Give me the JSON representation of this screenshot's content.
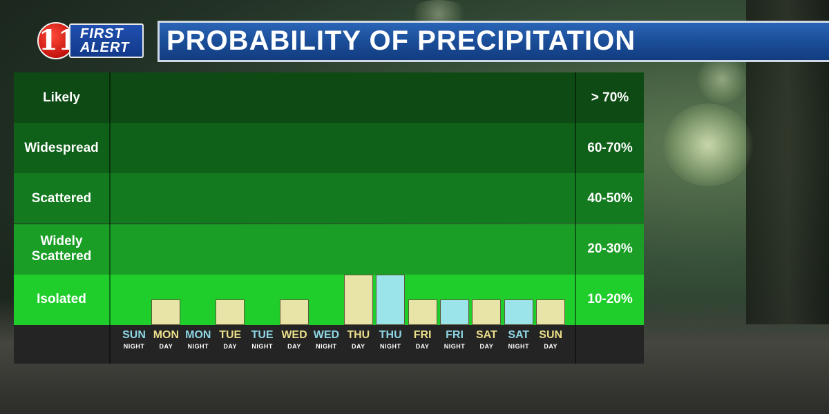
{
  "brand": {
    "logo_number": "11",
    "logo_line1": "FIRST",
    "logo_line2": "ALERT"
  },
  "title": "PROBABILITY OF PRECIPITATION",
  "colors": {
    "band_likely": "#0d4a14",
    "band_widespread": "#0f6019",
    "band_scattered": "#147a1f",
    "band_widely_scattered": "#1a9e25",
    "band_isolated": "#1fcd2b",
    "day_bar": "#e8e4a8",
    "night_bar": "#9ae4ea",
    "day_text": "#ecdf8a",
    "night_text": "#8fd6e6"
  },
  "chart_data": {
    "type": "bar",
    "title": "PROBABILITY OF PRECIPITATION",
    "bands": [
      {
        "label": "Likely",
        "range": "> 70%"
      },
      {
        "label": "Widespread",
        "range": "60-70%"
      },
      {
        "label": "Scattered",
        "range": "40-50%"
      },
      {
        "label": "Widely Scattered",
        "range": "20-30%"
      },
      {
        "label": "Isolated",
        "range": "10-20%"
      }
    ],
    "categories": [
      {
        "day": "SUN",
        "period": "NIGHT"
      },
      {
        "day": "MON",
        "period": "DAY"
      },
      {
        "day": "MON",
        "period": "NIGHT"
      },
      {
        "day": "TUE",
        "period": "DAY"
      },
      {
        "day": "TUE",
        "period": "NIGHT"
      },
      {
        "day": "WED",
        "period": "DAY"
      },
      {
        "day": "WED",
        "period": "NIGHT"
      },
      {
        "day": "THU",
        "period": "DAY"
      },
      {
        "day": "THU",
        "period": "NIGHT"
      },
      {
        "day": "FRI",
        "period": "DAY"
      },
      {
        "day": "FRI",
        "period": "NIGHT"
      },
      {
        "day": "SAT",
        "period": "DAY"
      },
      {
        "day": "SAT",
        "period": "NIGHT"
      },
      {
        "day": "SUN",
        "period": "DAY"
      }
    ],
    "values": [
      0,
      0.5,
      0,
      0.5,
      0,
      0.5,
      0,
      1.0,
      1.0,
      0.5,
      0.5,
      0.5,
      0.5,
      0.5
    ],
    "value_unit": "band levels (0 = none, 1 = top of Isolated band)",
    "grid": false,
    "legend": "none"
  }
}
